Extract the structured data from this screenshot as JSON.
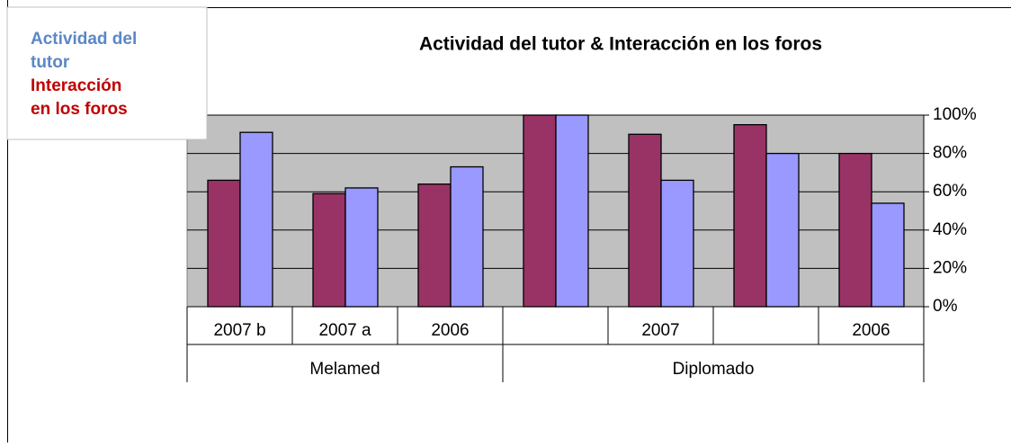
{
  "chart_data": {
    "type": "bar",
    "title": "Actividad del tutor & Interacción en los foros",
    "categories": [
      "2007 b",
      "2007 a",
      "2006",
      null,
      "2007",
      null,
      "2006"
    ],
    "groups": [
      {
        "name": "Melamed",
        "size": 3
      },
      {
        "name": "Diplomado",
        "size": 4
      }
    ],
    "series": [
      {
        "name": "Interacción en los foros",
        "color": "#993366",
        "legend_color": "#c00000",
        "values": [
          66,
          59,
          64,
          100,
          90,
          95,
          80
        ]
      },
      {
        "name": "Actividad del tutor",
        "color": "#9999ff",
        "legend_color": "#5b87c6",
        "values": [
          91,
          62,
          73,
          100,
          66,
          80,
          54
        ]
      }
    ],
    "ylim": [
      0,
      100
    ],
    "yticks": [
      {
        "value": 0,
        "label": "0%"
      },
      {
        "value": 20,
        "label": "20%"
      },
      {
        "value": 40,
        "label": "40%"
      },
      {
        "value": 60,
        "label": "60%"
      },
      {
        "value": 80,
        "label": "80%"
      },
      {
        "value": 100,
        "label": "100%"
      }
    ],
    "grid": true,
    "legend": "top-left"
  }
}
